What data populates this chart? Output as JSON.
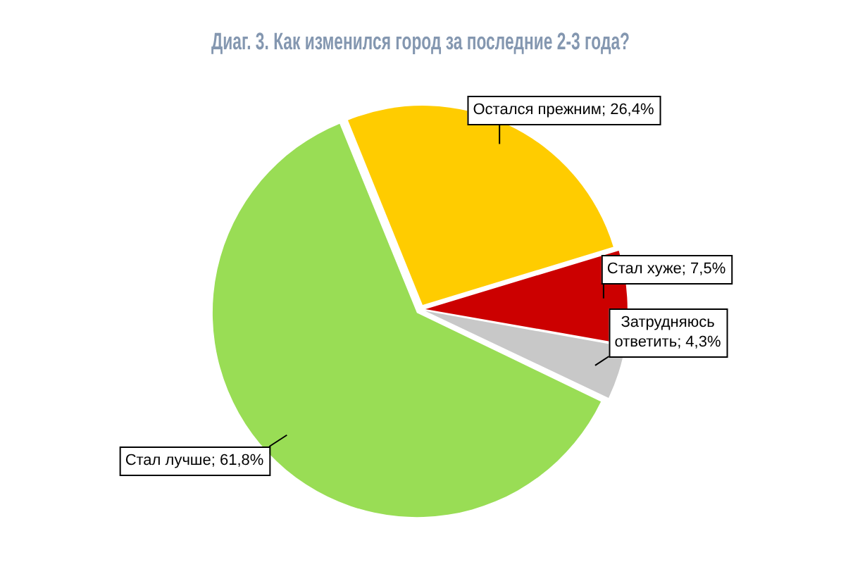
{
  "chart_data": {
    "type": "pie",
    "title": "Диаг. 3. Как изменился город за последние 2-3 года?",
    "categories": [
      "Остался прежним",
      "Стал хуже",
      "Затрудняюсь ответить",
      "Стал лучше"
    ],
    "values": [
      26.4,
      7.5,
      4.3,
      61.8
    ],
    "value_labels": [
      "26,4%",
      "7,5%",
      "4,3%",
      "61,8%"
    ],
    "colors": [
      "#ffcc00",
      "#cc0000",
      "#c8c8c8",
      "#99dd55"
    ],
    "legend": false
  }
}
